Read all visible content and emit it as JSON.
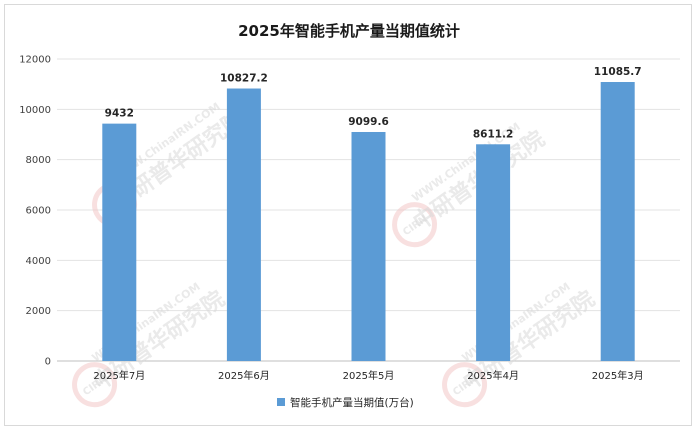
{
  "chart_data": {
    "type": "bar",
    "title": "2025年智能手机产量当期值统计",
    "categories": [
      "2025年7月",
      "2025年6月",
      "2025年5月",
      "2025年4月",
      "2025年3月"
    ],
    "series": [
      {
        "name": "智能手机产量当期值(万台)",
        "values": [
          9432,
          10827.2,
          9099.6,
          8611.2,
          11085.7
        ],
        "labels": [
          "9432",
          "10827.2",
          "9099.6",
          "8611.2",
          "11085.7"
        ],
        "color": "#5b9bd5"
      }
    ],
    "ylim": [
      0,
      12000
    ],
    "yticks": [
      0,
      2000,
      4000,
      6000,
      8000,
      10000,
      12000
    ],
    "grid": true,
    "legend_position": "bottom"
  },
  "watermark": {
    "text": "中研普华研究院",
    "url_text": "WWW.ChinaIRN.COM",
    "logo_text": "CIRN"
  }
}
